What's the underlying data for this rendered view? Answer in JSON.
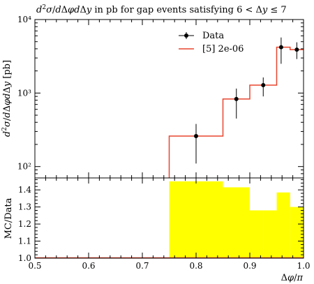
{
  "chart_data": [
    {
      "type": "line",
      "panel": "main",
      "title": "d²σ/dΔφdΔy in pb for gap events satisfying 6 < Δy ≤ 7",
      "ylabel": "d²σ/dΔφdΔy [pb]",
      "yscale": "log",
      "ylim": [
        70,
        10000
      ],
      "xlim": [
        0.5,
        1.0
      ],
      "y_tick_labels": [
        "10²",
        "10³",
        "10⁴"
      ],
      "legend": {
        "placement": "top-right",
        "entries": [
          "Data",
          "[5] 2e-06"
        ]
      },
      "series": [
        {
          "name": "Data",
          "style": "points-with-errorbars",
          "color": "#000000",
          "x": [
            0.8,
            0.875,
            0.925,
            0.9583,
            0.9875
          ],
          "y": [
            260,
            830,
            1280,
            4200,
            3900
          ],
          "yerr_low": [
            150,
            380,
            380,
            1700,
            1000
          ],
          "yerr_high": [
            120,
            320,
            350,
            1500,
            1000
          ]
        },
        {
          "name": "[5] 2e-06",
          "style": "histogram",
          "color": "#e8452e",
          "bin_edges": [
            0.75,
            0.85,
            0.9,
            0.95,
            0.975,
            1.0
          ],
          "values": [
            260,
            830,
            1280,
            4200,
            3900
          ]
        }
      ]
    },
    {
      "type": "area",
      "panel": "ratio",
      "ylabel": "MC/Data",
      "xlabel": "Δφ/π",
      "ylim": [
        1.0,
        1.47
      ],
      "xlim": [
        0.5,
        1.0
      ],
      "x_tick_labels": [
        "0.5",
        "0.6",
        "0.7",
        "0.8",
        "0.9",
        "1.0"
      ],
      "y_tick_labels": [
        "1.0",
        "1.1",
        "1.2",
        "1.3",
        "1.4"
      ],
      "band_color": "#ffff00",
      "reference_value": 1.0,
      "bin_edges": [
        0.75,
        0.85,
        0.9,
        0.925,
        0.95,
        0.975,
        1.0
      ],
      "upper": [
        1.45,
        1.415,
        1.28,
        1.28,
        1.385,
        1.3
      ],
      "lower": [
        1.0,
        1.0,
        1.0,
        1.0,
        1.0,
        1.0
      ]
    }
  ]
}
